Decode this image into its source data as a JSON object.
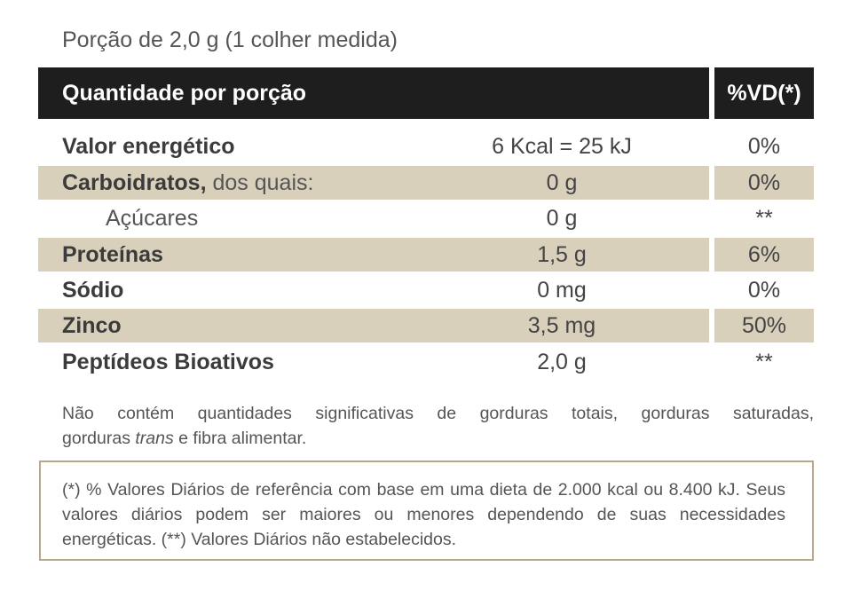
{
  "serving": "Porção de 2,0 g (1 colher medida)",
  "header": {
    "quantity_label": "Quantidade por porção",
    "vd_label": "%VD(*)"
  },
  "rows": [
    {
      "name": "Valor energético",
      "name_suffix": "",
      "amount": "6 Kcal = 25 kJ",
      "vd": "0%"
    },
    {
      "name": "Carboidratos,",
      "name_suffix": " dos quais:",
      "amount": "0 g",
      "vd": "0%"
    },
    {
      "name": "Açúcares",
      "name_suffix": "",
      "amount": "0 g",
      "vd": "**"
    },
    {
      "name": "Proteínas",
      "name_suffix": "",
      "amount": "1,5 g",
      "vd": "6%"
    },
    {
      "name": "Sódio",
      "name_suffix": "",
      "amount": "0 mg",
      "vd": "0%"
    },
    {
      "name": "Zinco",
      "name_suffix": "",
      "amount": "3,5 mg",
      "vd": "50%"
    },
    {
      "name": "Peptídeos Bioativos",
      "name_suffix": "",
      "amount": "2,0 g",
      "vd": "**"
    }
  ],
  "note": {
    "line1": "Não contém quantidades significativas de gorduras totais, gorduras saturadas,",
    "line2_start": "gorduras ",
    "line2_italic": "trans",
    "line2_end": " e fibra alimentar."
  },
  "footnote": "(*) % Valores Diários de referência com base em uma dieta de 2.000 kcal ou 8.400 kJ. Seus valores diários podem ser maiores ou menores dependendo de suas necessidades energéticas. (**) Valores Diários não estabelecidos.",
  "colors": {
    "header_bg": "#1e1e1e",
    "row_shade": "#d9d0bc",
    "border": "#b7a98a"
  }
}
